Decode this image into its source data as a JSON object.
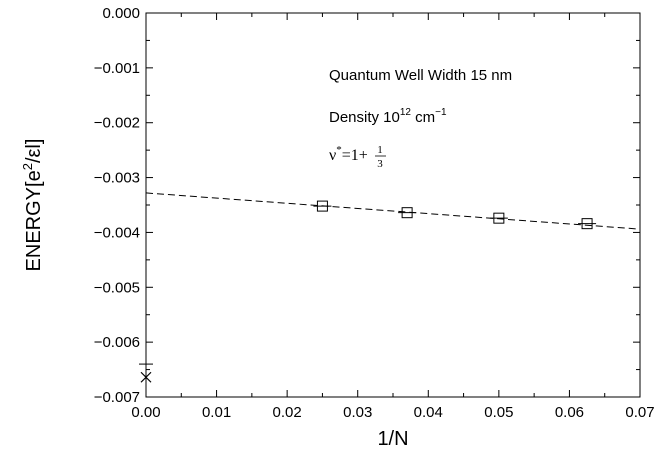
{
  "chart_data": {
    "type": "scatter",
    "xlabel": "1/N",
    "ylabel_base": "ENERGY[e",
    "ylabel_sup": "2",
    "ylabel_tail": "/εl]",
    "xlim": [
      0.0,
      0.07
    ],
    "ylim": [
      -0.007,
      0.0
    ],
    "xticks": [
      0.0,
      0.01,
      0.02,
      0.03,
      0.04,
      0.05,
      0.06,
      0.07
    ],
    "xtick_labels": [
      "0.00",
      "0.01",
      "0.02",
      "0.03",
      "0.04",
      "0.05",
      "0.06",
      "0.07"
    ],
    "yticks": [
      0.0,
      -0.001,
      -0.002,
      -0.003,
      -0.004,
      -0.005,
      -0.006,
      -0.007
    ],
    "ytick_labels": [
      "0.000",
      "−0.001",
      "−0.002",
      "−0.003",
      "−0.004",
      "−0.005",
      "−0.006",
      "−0.007"
    ],
    "grid": false,
    "series": [
      {
        "marker": "square",
        "points": [
          {
            "x": 0.025,
            "y": -0.00352
          },
          {
            "x": 0.037,
            "y": -0.00364
          },
          {
            "x": 0.05,
            "y": -0.00374
          },
          {
            "x": 0.0625,
            "y": -0.00384
          }
        ]
      },
      {
        "marker": "dash-line",
        "x": [
          0.0,
          0.07
        ],
        "y": [
          -0.00328,
          -0.00394
        ]
      },
      {
        "marker": "x",
        "points": [
          {
            "x": 0.0,
            "y": -0.00664
          }
        ]
      },
      {
        "marker": "hbar",
        "points": [
          {
            "x": 0.0,
            "y": -0.0064
          }
        ]
      }
    ],
    "annotations": {
      "line1": "Quantum Well Width 15 nm",
      "line2_base": "Density 10",
      "line2_sup1": "12",
      "line2_unit": " cm",
      "line2_sup2": "−1",
      "nu_base": "ν",
      "nu_sup": "*",
      "nu_rest": "=1+",
      "nu_num": "1",
      "nu_den": "3"
    }
  }
}
